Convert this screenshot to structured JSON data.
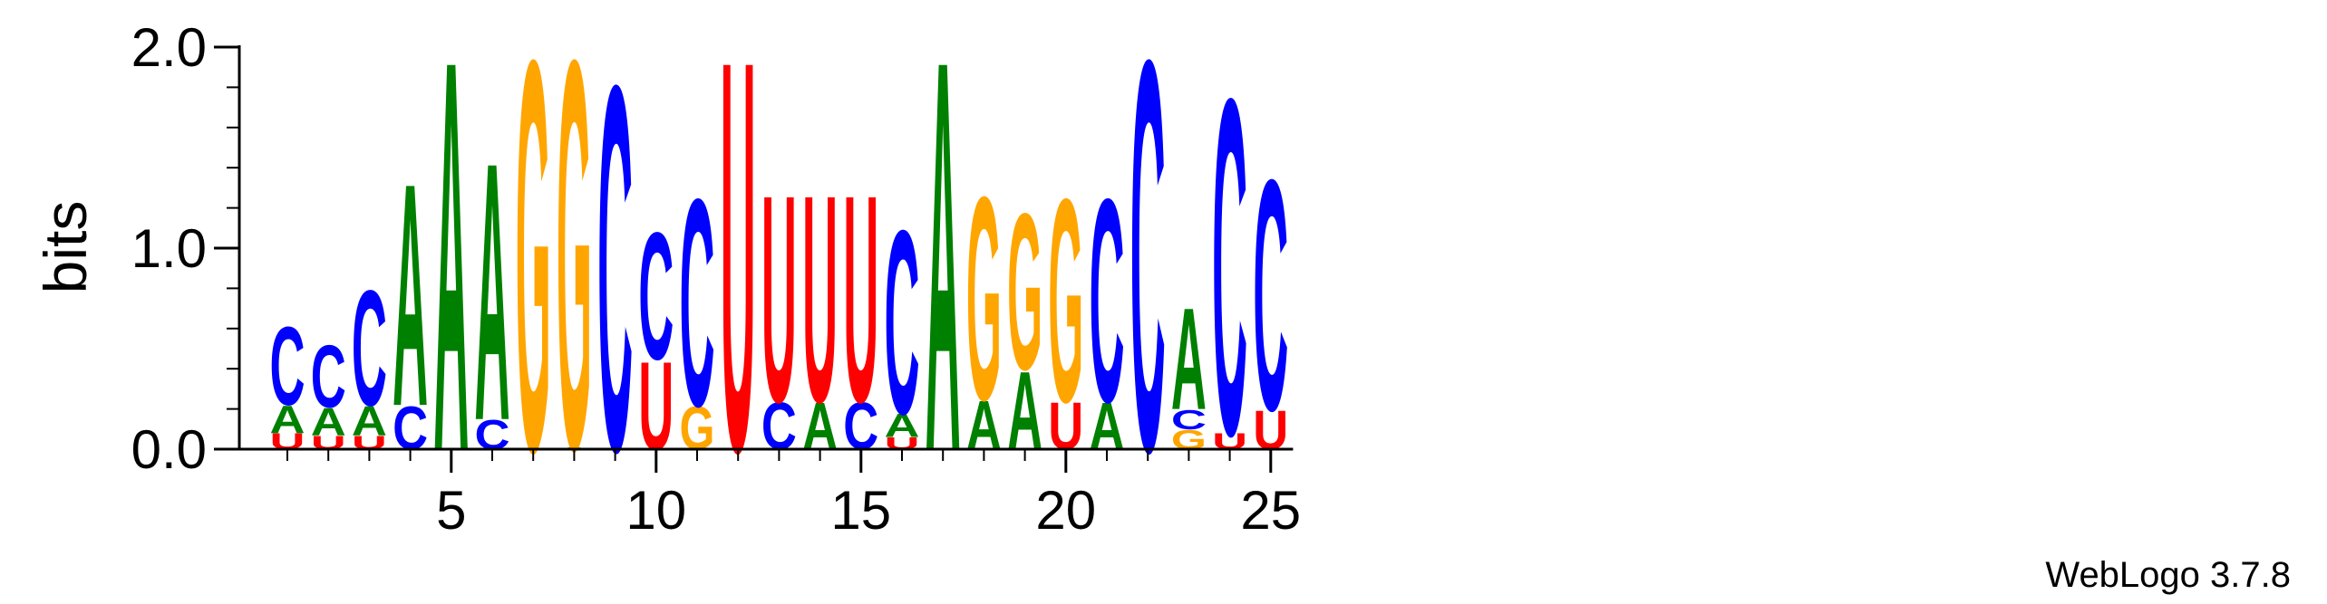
{
  "chart_data": {
    "type": "sequence-logo",
    "ylabel": "bits",
    "ylim": [
      0,
      2
    ],
    "y_ticks": [
      "0.0",
      "1.0",
      "2.0"
    ],
    "y_tick_values": [
      0,
      1,
      2
    ],
    "x_ticks": [
      "5",
      "10",
      "15",
      "20",
      "25"
    ],
    "x_tick_values": [
      5,
      10,
      15,
      20,
      25
    ],
    "footer": "WebLogo 3.7.8",
    "colors": {
      "A": "#008000",
      "C": "#0000ff",
      "G": "#ffa500",
      "U": "#ff0000"
    },
    "positions": [
      {
        "pos": 1,
        "letters": [
          {
            "l": "U",
            "h": 0.08
          },
          {
            "l": "A",
            "h": 0.14
          },
          {
            "l": "C",
            "h": 0.4
          }
        ]
      },
      {
        "pos": 2,
        "letters": [
          {
            "l": "U",
            "h": 0.07
          },
          {
            "l": "A",
            "h": 0.14
          },
          {
            "l": "C",
            "h": 0.32
          }
        ]
      },
      {
        "pos": 3,
        "letters": [
          {
            "l": "U",
            "h": 0.07
          },
          {
            "l": "A",
            "h": 0.15
          },
          {
            "l": "C",
            "h": 0.59
          }
        ]
      },
      {
        "pos": 4,
        "letters": [
          {
            "l": "C",
            "h": 0.22
          },
          {
            "l": "A",
            "h": 1.14
          }
        ]
      },
      {
        "pos": 5,
        "letters": [
          {
            "l": "A",
            "h": 2.0
          }
        ]
      },
      {
        "pos": 6,
        "letters": [
          {
            "l": "C",
            "h": 0.15
          },
          {
            "l": "A",
            "h": 1.32
          }
        ]
      },
      {
        "pos": 7,
        "letters": [
          {
            "l": "G",
            "h": 2.0
          }
        ]
      },
      {
        "pos": 8,
        "letters": [
          {
            "l": "A",
            "h": 0.01
          },
          {
            "l": "G",
            "h": 1.99
          }
        ]
      },
      {
        "pos": 9,
        "letters": [
          {
            "l": "C",
            "h": 1.87
          }
        ]
      },
      {
        "pos": 10,
        "letters": [
          {
            "l": "U",
            "h": 0.45
          },
          {
            "l": "C",
            "h": 0.65
          }
        ]
      },
      {
        "pos": 11,
        "letters": [
          {
            "l": "G",
            "h": 0.22
          },
          {
            "l": "C",
            "h": 1.06
          }
        ]
      },
      {
        "pos": 12,
        "letters": [
          {
            "l": "U",
            "h": 2.0
          }
        ]
      },
      {
        "pos": 13,
        "letters": [
          {
            "l": "C",
            "h": 0.24
          },
          {
            "l": "U",
            "h": 1.06
          }
        ]
      },
      {
        "pos": 14,
        "letters": [
          {
            "l": "A",
            "h": 0.24
          },
          {
            "l": "U",
            "h": 1.06
          }
        ]
      },
      {
        "pos": 15,
        "letters": [
          {
            "l": "C",
            "h": 0.24
          },
          {
            "l": "U",
            "h": 1.06
          }
        ]
      },
      {
        "pos": 16,
        "letters": [
          {
            "l": "U",
            "h": 0.06
          },
          {
            "l": "A",
            "h": 0.12
          },
          {
            "l": "C",
            "h": 0.94
          }
        ]
      },
      {
        "pos": 17,
        "letters": [
          {
            "l": "A",
            "h": 2.0
          }
        ]
      },
      {
        "pos": 18,
        "letters": [
          {
            "l": "A",
            "h": 0.25
          },
          {
            "l": "G",
            "h": 1.04
          }
        ]
      },
      {
        "pos": 19,
        "letters": [
          {
            "l": "A",
            "h": 0.4
          },
          {
            "l": "G",
            "h": 0.8
          }
        ]
      },
      {
        "pos": 20,
        "letters": [
          {
            "l": "U",
            "h": 0.24
          },
          {
            "l": "G",
            "h": 1.04
          }
        ]
      },
      {
        "pos": 21,
        "letters": [
          {
            "l": "A",
            "h": 0.24
          },
          {
            "l": "C",
            "h": 1.04
          }
        ]
      },
      {
        "pos": 22,
        "letters": [
          {
            "l": "C",
            "h": 2.0
          }
        ]
      },
      {
        "pos": 23,
        "letters": [
          {
            "l": "G",
            "h": 0.1
          },
          {
            "l": "C",
            "h": 0.1
          },
          {
            "l": "A",
            "h": 0.52
          }
        ]
      },
      {
        "pos": 24,
        "letters": [
          {
            "l": "U",
            "h": 0.08
          },
          {
            "l": "C",
            "h": 1.72
          }
        ]
      },
      {
        "pos": 25,
        "letters": [
          {
            "l": "U",
            "h": 0.2
          },
          {
            "l": "C",
            "h": 1.18
          }
        ]
      }
    ]
  }
}
